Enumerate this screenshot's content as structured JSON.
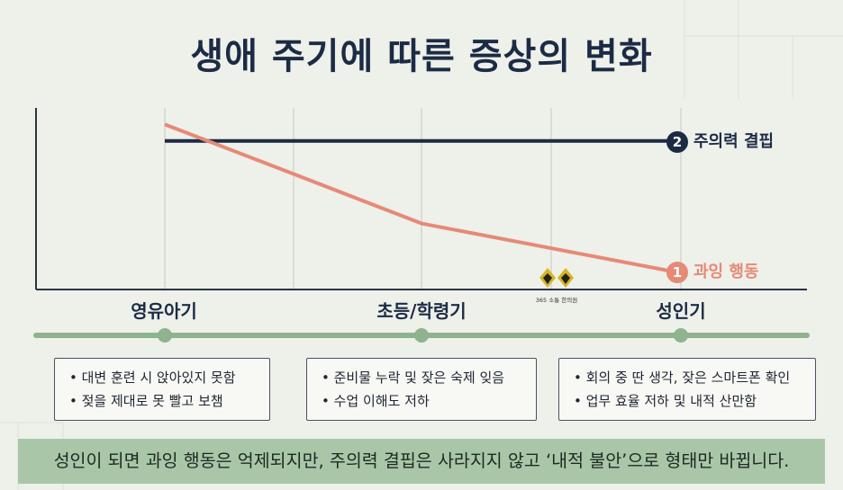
{
  "title": "생애 주기에 따른 증상의 변화",
  "chart_data": {
    "type": "line",
    "categories": [
      "영유아기",
      "",
      "초등/학령기",
      "",
      "성인기"
    ],
    "series": [
      {
        "name": "주의력 결핍",
        "marker": "2",
        "color": "#1c2b45",
        "values": [
          90,
          90,
          90,
          90,
          90
        ]
      },
      {
        "name": "과잉 행동",
        "marker": "1",
        "color": "#e58a76",
        "values": [
          100,
          70,
          40,
          25,
          10
        ]
      }
    ],
    "ylim": [
      0,
      110
    ]
  },
  "stages": [
    {
      "label": "영유아기",
      "items": [
        "대변 훈련 시 앉아있지 못함",
        "젖을 제대로 못 빨고 보챔"
      ]
    },
    {
      "label": "초등/학령기",
      "items": [
        "준비물 누락 및 잦은 숙제 잊음",
        "수업 이해도 저하"
      ]
    },
    {
      "label": "성인기",
      "items": [
        "회의 중 딴 생각, 잦은 스마트폰 확인",
        "업무 효율 저하 및 내적 산만함"
      ]
    }
  ],
  "footer": "성인이 되면 과잉 행동은 억제되지만, 주의력 결핍은 사라지지 않고 ‘내적 불안’으로 형태만 바뀝니다.",
  "logo_text": "365 소통 한의원",
  "colors": {
    "navy": "#1c2b45",
    "coral": "#e58a76",
    "green": "#a9c7a8",
    "timeline": "#8fb38d"
  }
}
